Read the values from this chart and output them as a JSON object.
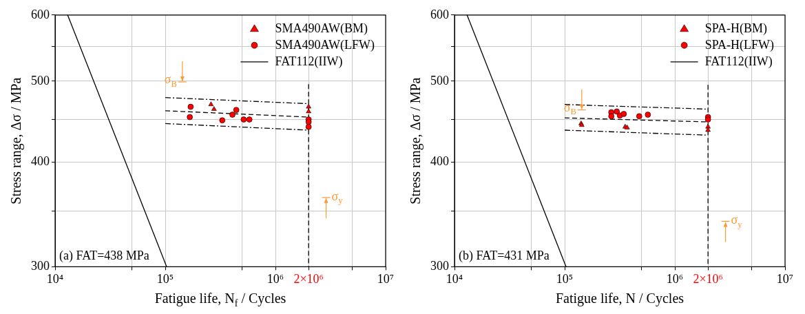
{
  "chart_data": [
    {
      "type": "scatter",
      "xlabel": "Fatigue life, N$_{f}$ / Cycles",
      "ylabel": "Stress range, Δσ / MPa",
      "log": "xy",
      "grid": true,
      "legend": "top right",
      "xlim": [
        10000,
        10000000
      ],
      "ylim": [
        300,
        600
      ],
      "xticks": [
        {
          "value": 10000,
          "label": "10⁴"
        },
        {
          "value": 50000,
          "label": null
        },
        {
          "value": 100000,
          "label": "10⁵"
        },
        {
          "value": 500000,
          "label": null
        },
        {
          "value": 1000000,
          "label": "10⁶"
        },
        {
          "value": 2000000,
          "label": "2×10⁶"
        },
        {
          "value": 5000000,
          "label": null
        },
        {
          "value": 10000000,
          "label": "10⁷"
        }
      ],
      "yticks": [
        300,
        {
          "value": 350,
          "label": null
        },
        400,
        {
          "value": 450,
          "label": null
        },
        500,
        {
          "value": 550,
          "label": null
        },
        600
      ],
      "annotations": [
        "(a) FAT=438 MPa"
      ],
      "ref_lines": [
        {
          "axis": "y",
          "value": 499,
          "label": "σ$_{B}$",
          "color": "#ff9933"
        },
        {
          "axis": "y",
          "value": 363,
          "label": "σ$_{y}$",
          "color": "#ff9933"
        }
      ],
      "series": [
        {
          "name": "SMA490AW(BM)",
          "type": "scatter",
          "marker": "triangle",
          "color": "#ff0000",
          "x": [
            260000,
            277000,
            2000000,
            2000000
          ],
          "values": [
            469,
            463,
            466,
            460
          ]
        },
        {
          "name": "SMA490AW(LFW)",
          "type": "scatter",
          "marker": "circle",
          "color": "#ff0000",
          "x": [
            170000,
            167000,
            329000,
            407000,
            441000,
            515000,
            580000,
            2000000,
            2000000,
            2000000
          ],
          "values": [
            466,
            453,
            449,
            456,
            462,
            450,
            450,
            450,
            447,
            441
          ]
        },
        {
          "name": "FAT112(IIW)",
          "type": "line",
          "line_style": "solid",
          "color": "#000000",
          "x": [
            13000,
            103000
          ],
          "values": [
            600,
            300
          ]
        },
        {
          "type": "line",
          "line_style": "dashdot",
          "color": "#000000",
          "x": [
            100000,
            2000000
          ],
          "values": [
            478,
            470
          ]
        },
        {
          "type": "line",
          "line_style": "dashed",
          "color": "#000000",
          "x": [
            100000,
            2000000
          ],
          "values": [
            461,
            453
          ]
        },
        {
          "type": "line",
          "line_style": "dashdot",
          "color": "#000000",
          "x": [
            100000,
            2000000
          ],
          "values": [
            445,
            437
          ]
        },
        {
          "type": "line",
          "line_style": "dashed",
          "color": "#000000",
          "x": [
            2000000,
            2000000
          ],
          "values": [
            496,
            300
          ]
        }
      ]
    },
    {
      "type": "scatter",
      "xlabel": "Fatigue life, N / Cycles",
      "ylabel": "Stress range, Δσ / MPa",
      "log": "xy",
      "grid": true,
      "legend": "top right",
      "xlim": [
        10000,
        10000000
      ],
      "ylim": [
        300,
        600
      ],
      "xticks": [
        {
          "value": 10000,
          "label": "10⁴"
        },
        {
          "value": 50000,
          "label": null
        },
        {
          "value": 100000,
          "label": "10⁵"
        },
        {
          "value": 500000,
          "label": null
        },
        {
          "value": 1000000,
          "label": "10⁶"
        },
        {
          "value": 2000000,
          "label": "2×10⁶"
        },
        {
          "value": 5000000,
          "label": null
        },
        {
          "value": 10000000,
          "label": "10⁷"
        }
      ],
      "yticks": [
        300,
        {
          "value": 350,
          "label": null
        },
        400,
        {
          "value": 450,
          "label": null
        },
        500,
        {
          "value": 550,
          "label": null
        },
        600
      ],
      "annotations": [
        "(b) FAT=431 MPa"
      ],
      "ref_lines": [
        {
          "axis": "y",
          "value": 462,
          "label": "σ$_{B}$",
          "color": "#ff9933"
        },
        {
          "axis": "y",
          "value": 340,
          "label": "σ$_{y}$",
          "color": "#ff9933"
        }
      ],
      "series": [
        {
          "name": "SPA-H(BM)",
          "type": "scatter",
          "marker": "triangle",
          "color": "#ff0000",
          "x": [
            141000,
            143000,
            354000,
            369000,
            2000000,
            2000000
          ],
          "values": [
            445,
            443,
            441,
            440,
            441,
            437
          ]
        },
        {
          "name": "SPA-H(LFW)",
          "type": "scatter",
          "marker": "circle",
          "color": "#ff0000",
          "x": [
            265000,
            265000,
            297000,
            317000,
            344000,
            475000,
            569000,
            2000000,
            2000000
          ],
          "values": [
            459,
            454,
            460,
            455,
            457,
            454,
            456,
            453,
            450
          ]
        },
        {
          "name": "FAT112(IIW)",
          "type": "line",
          "line_style": "solid",
          "color": "#000000",
          "x": [
            13000,
            103000
          ],
          "values": [
            600,
            300
          ]
        },
        {
          "type": "line",
          "line_style": "dashdot",
          "color": "#000000",
          "x": [
            100000,
            2000000
          ],
          "values": [
            469,
            463
          ]
        },
        {
          "type": "line",
          "line_style": "dashed",
          "color": "#000000",
          "x": [
            100000,
            2000000
          ],
          "values": [
            452,
            447
          ]
        },
        {
          "type": "line",
          "line_style": "dashdot",
          "color": "#000000",
          "x": [
            100000,
            2000000
          ],
          "values": [
            437,
            431
          ]
        },
        {
          "type": "line",
          "line_style": "dashed",
          "color": "#000000",
          "x": [
            2000000,
            2000000
          ],
          "values": [
            495,
            300
          ]
        }
      ]
    }
  ]
}
